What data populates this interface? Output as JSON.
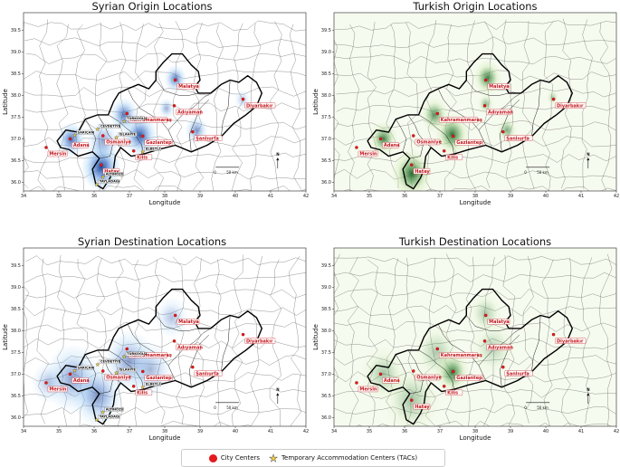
{
  "panels": [
    {
      "id": "p1",
      "title": "Syrian Origin Locations",
      "theme": "blue",
      "show_tacs": true,
      "showHatay": true,
      "blobs": [
        {
          "lon": 36.2,
          "lat": 36.35,
          "strength": 1.0,
          "r": 0.35
        },
        {
          "lon": 35.35,
          "lat": 36.98,
          "strength": 0.8,
          "r": 0.25
        },
        {
          "lon": 37.3,
          "lat": 37.08,
          "strength": 0.9,
          "r": 0.3
        },
        {
          "lon": 36.85,
          "lat": 37.55,
          "strength": 0.75,
          "r": 0.25
        },
        {
          "lon": 38.3,
          "lat": 38.38,
          "strength": 0.7,
          "r": 0.2
        },
        {
          "lon": 38.9,
          "lat": 37.2,
          "strength": 0.6,
          "r": 0.2
        },
        {
          "lon": 36.25,
          "lat": 36.95,
          "strength": 0.5,
          "r": 0.3
        },
        {
          "lon": 38.05,
          "lat": 37.7,
          "strength": 0.45,
          "r": 0.15
        },
        {
          "lon": 40.2,
          "lat": 37.9,
          "strength": 0.3,
          "r": 0.15
        }
      ]
    },
    {
      "id": "p2",
      "title": "Turkish Origin Locations",
      "theme": "green",
      "show_tacs": false,
      "showHatay": true,
      "blobs": [
        {
          "lon": 36.2,
          "lat": 36.2,
          "strength": 1.0,
          "r": 0.35
        },
        {
          "lon": 35.4,
          "lat": 37.0,
          "strength": 0.85,
          "r": 0.25
        },
        {
          "lon": 37.35,
          "lat": 37.1,
          "strength": 0.95,
          "r": 0.3
        },
        {
          "lon": 36.85,
          "lat": 37.55,
          "strength": 0.75,
          "r": 0.25
        },
        {
          "lon": 38.35,
          "lat": 38.4,
          "strength": 0.85,
          "r": 0.25
        },
        {
          "lon": 38.9,
          "lat": 37.2,
          "strength": 0.6,
          "r": 0.18
        },
        {
          "lon": 38.3,
          "lat": 37.8,
          "strength": 0.5,
          "r": 0.15
        },
        {
          "lon": 40.2,
          "lat": 37.95,
          "strength": 0.35,
          "r": 0.12
        }
      ]
    },
    {
      "id": "p3",
      "title": "Syrian Destination Locations",
      "theme": "blue",
      "show_tacs": true,
      "showHatay": false,
      "blobs": [
        {
          "lon": 35.4,
          "lat": 36.9,
          "strength": 0.55,
          "r": 0.5
        },
        {
          "lon": 36.1,
          "lat": 36.5,
          "strength": 0.6,
          "r": 0.45
        },
        {
          "lon": 37.0,
          "lat": 37.3,
          "strength": 0.55,
          "r": 0.45
        },
        {
          "lon": 37.6,
          "lat": 37.1,
          "strength": 0.4,
          "r": 0.4
        },
        {
          "lon": 38.2,
          "lat": 38.3,
          "strength": 0.35,
          "r": 0.3
        },
        {
          "lon": 34.7,
          "lat": 36.8,
          "strength": 0.35,
          "r": 0.3
        }
      ]
    },
    {
      "id": "p4",
      "title": "Turkish Destination Locations",
      "theme": "green",
      "show_tacs": false,
      "showHatay": true,
      "blobs": [
        {
          "lon": 37.35,
          "lat": 37.05,
          "strength": 0.9,
          "r": 0.3
        },
        {
          "lon": 36.2,
          "lat": 36.4,
          "strength": 0.4,
          "r": 0.5
        },
        {
          "lon": 35.4,
          "lat": 37.0,
          "strength": 0.4,
          "r": 0.4
        },
        {
          "lon": 36.9,
          "lat": 37.5,
          "strength": 0.35,
          "r": 0.4
        },
        {
          "lon": 38.3,
          "lat": 38.4,
          "strength": 0.35,
          "r": 0.3
        },
        {
          "lon": 38.5,
          "lat": 37.6,
          "strength": 0.3,
          "r": 0.4
        }
      ]
    }
  ],
  "axes": {
    "xlabel": "Longitude",
    "ylabel": "Latitude",
    "x_ticks": [
      34,
      35,
      36,
      37,
      38,
      39,
      40,
      41,
      42
    ],
    "y_ticks": [
      36.0,
      36.5,
      37.0,
      37.5,
      38.0,
      38.5,
      39.0,
      39.5
    ],
    "xlim": [
      34,
      42
    ],
    "ylim": [
      35.8,
      39.9
    ]
  },
  "cities": [
    {
      "name": "Malatya",
      "lon": 38.3,
      "lat": 38.35,
      "dlon": 0.05,
      "dlat": -0.15
    },
    {
      "name": "Adıyaman",
      "lon": 38.27,
      "lat": 37.76,
      "dlon": 0.05,
      "dlat": -0.15
    },
    {
      "name": "Diyarbakır",
      "lon": 40.22,
      "lat": 37.91,
      "dlon": 0.05,
      "dlat": -0.15
    },
    {
      "name": "Kahramanmaraş",
      "lon": 36.93,
      "lat": 37.58,
      "dlon": 0.05,
      "dlat": -0.15
    },
    {
      "name": "Osmaniye",
      "lon": 36.25,
      "lat": 37.07,
      "dlon": 0.05,
      "dlat": -0.15
    },
    {
      "name": "Gaziantep",
      "lon": 37.38,
      "lat": 37.06,
      "dlon": 0.05,
      "dlat": -0.15
    },
    {
      "name": "Şanlıurfa",
      "lon": 38.79,
      "lat": 37.16,
      "dlon": 0.05,
      "dlat": -0.15
    },
    {
      "name": "Adana",
      "lon": 35.32,
      "lat": 37.0,
      "dlon": 0.05,
      "dlat": -0.15
    },
    {
      "name": "Mersin",
      "lon": 34.64,
      "lat": 36.8,
      "dlon": 0.05,
      "dlat": -0.15
    },
    {
      "name": "Kilis",
      "lon": 37.12,
      "lat": 36.72,
      "dlon": 0.05,
      "dlat": -0.15
    },
    {
      "name": "Hatay",
      "lon": 36.2,
      "lat": 36.4,
      "dlon": 0.05,
      "dlat": -0.15
    }
  ],
  "tacs": [
    {
      "name": "SARIÇAM",
      "lon": 35.45,
      "lat": 37.08
    },
    {
      "name": "CEVDETİYE",
      "lon": 36.1,
      "lat": 37.22
    },
    {
      "name": "TÜRKOĞLU",
      "lon": 36.85,
      "lat": 37.4
    },
    {
      "name": "ELBEYLİ",
      "lon": 37.38,
      "lat": 36.7
    },
    {
      "name": "İSLAHİYE",
      "lon": 36.63,
      "lat": 37.03
    },
    {
      "name": "ALTINÖZÜ",
      "lon": 36.25,
      "lat": 36.12
    },
    {
      "name": "YAYLADAĞI",
      "lon": 36.07,
      "lat": 35.95
    }
  ],
  "scale_bar": {
    "label_start": "0",
    "label_end": "50 km"
  },
  "north_arrow": "N",
  "legend": {
    "city_label": "City Centers",
    "tac_label": "Temporary Accommodation Centers (TACs)"
  },
  "colors": {
    "blue_core": "#1a3e8c",
    "blue_outer": "#a8d4f5",
    "green_core": "#1f5f28",
    "green_outer": "#d4ebb8",
    "city": "#e41a1c",
    "tac": "#f4d03f",
    "region_border": "#000000"
  }
}
